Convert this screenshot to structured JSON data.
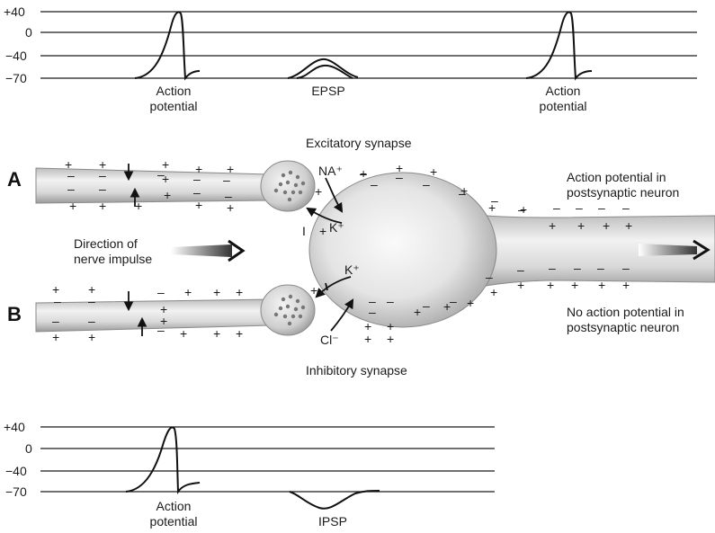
{
  "top_graph": {
    "y_ticks": [
      "+40",
      "0",
      "−40",
      "−70"
    ],
    "labels": [
      [
        "Action",
        "potential"
      ],
      [
        "EPSP"
      ],
      [
        "Action",
        "potential"
      ]
    ]
  },
  "bottom_graph": {
    "y_ticks": [
      "+40",
      "0",
      "−40",
      "−70"
    ],
    "labels": [
      [
        "Action",
        "potential"
      ],
      [
        "IPSP"
      ]
    ]
  },
  "center": {
    "panel_a": "A",
    "panel_b": "B",
    "excitatory_title": "Excitatory synapse",
    "inhibitory_title": "Inhibitory synapse",
    "direction_label": [
      "Direction of",
      "nerve impulse"
    ],
    "ap_label": [
      "Action potential in",
      "postsynaptic neuron"
    ],
    "no_ap_label": [
      "No action potential in",
      "postsynaptic neuron"
    ],
    "ion_na": "NA⁺",
    "ion_k_a": "K⁺",
    "ion_k_b": "K⁺",
    "ion_cl": "Cl⁻",
    "plus": "+",
    "minus": "–",
    "marker_i": "I"
  }
}
